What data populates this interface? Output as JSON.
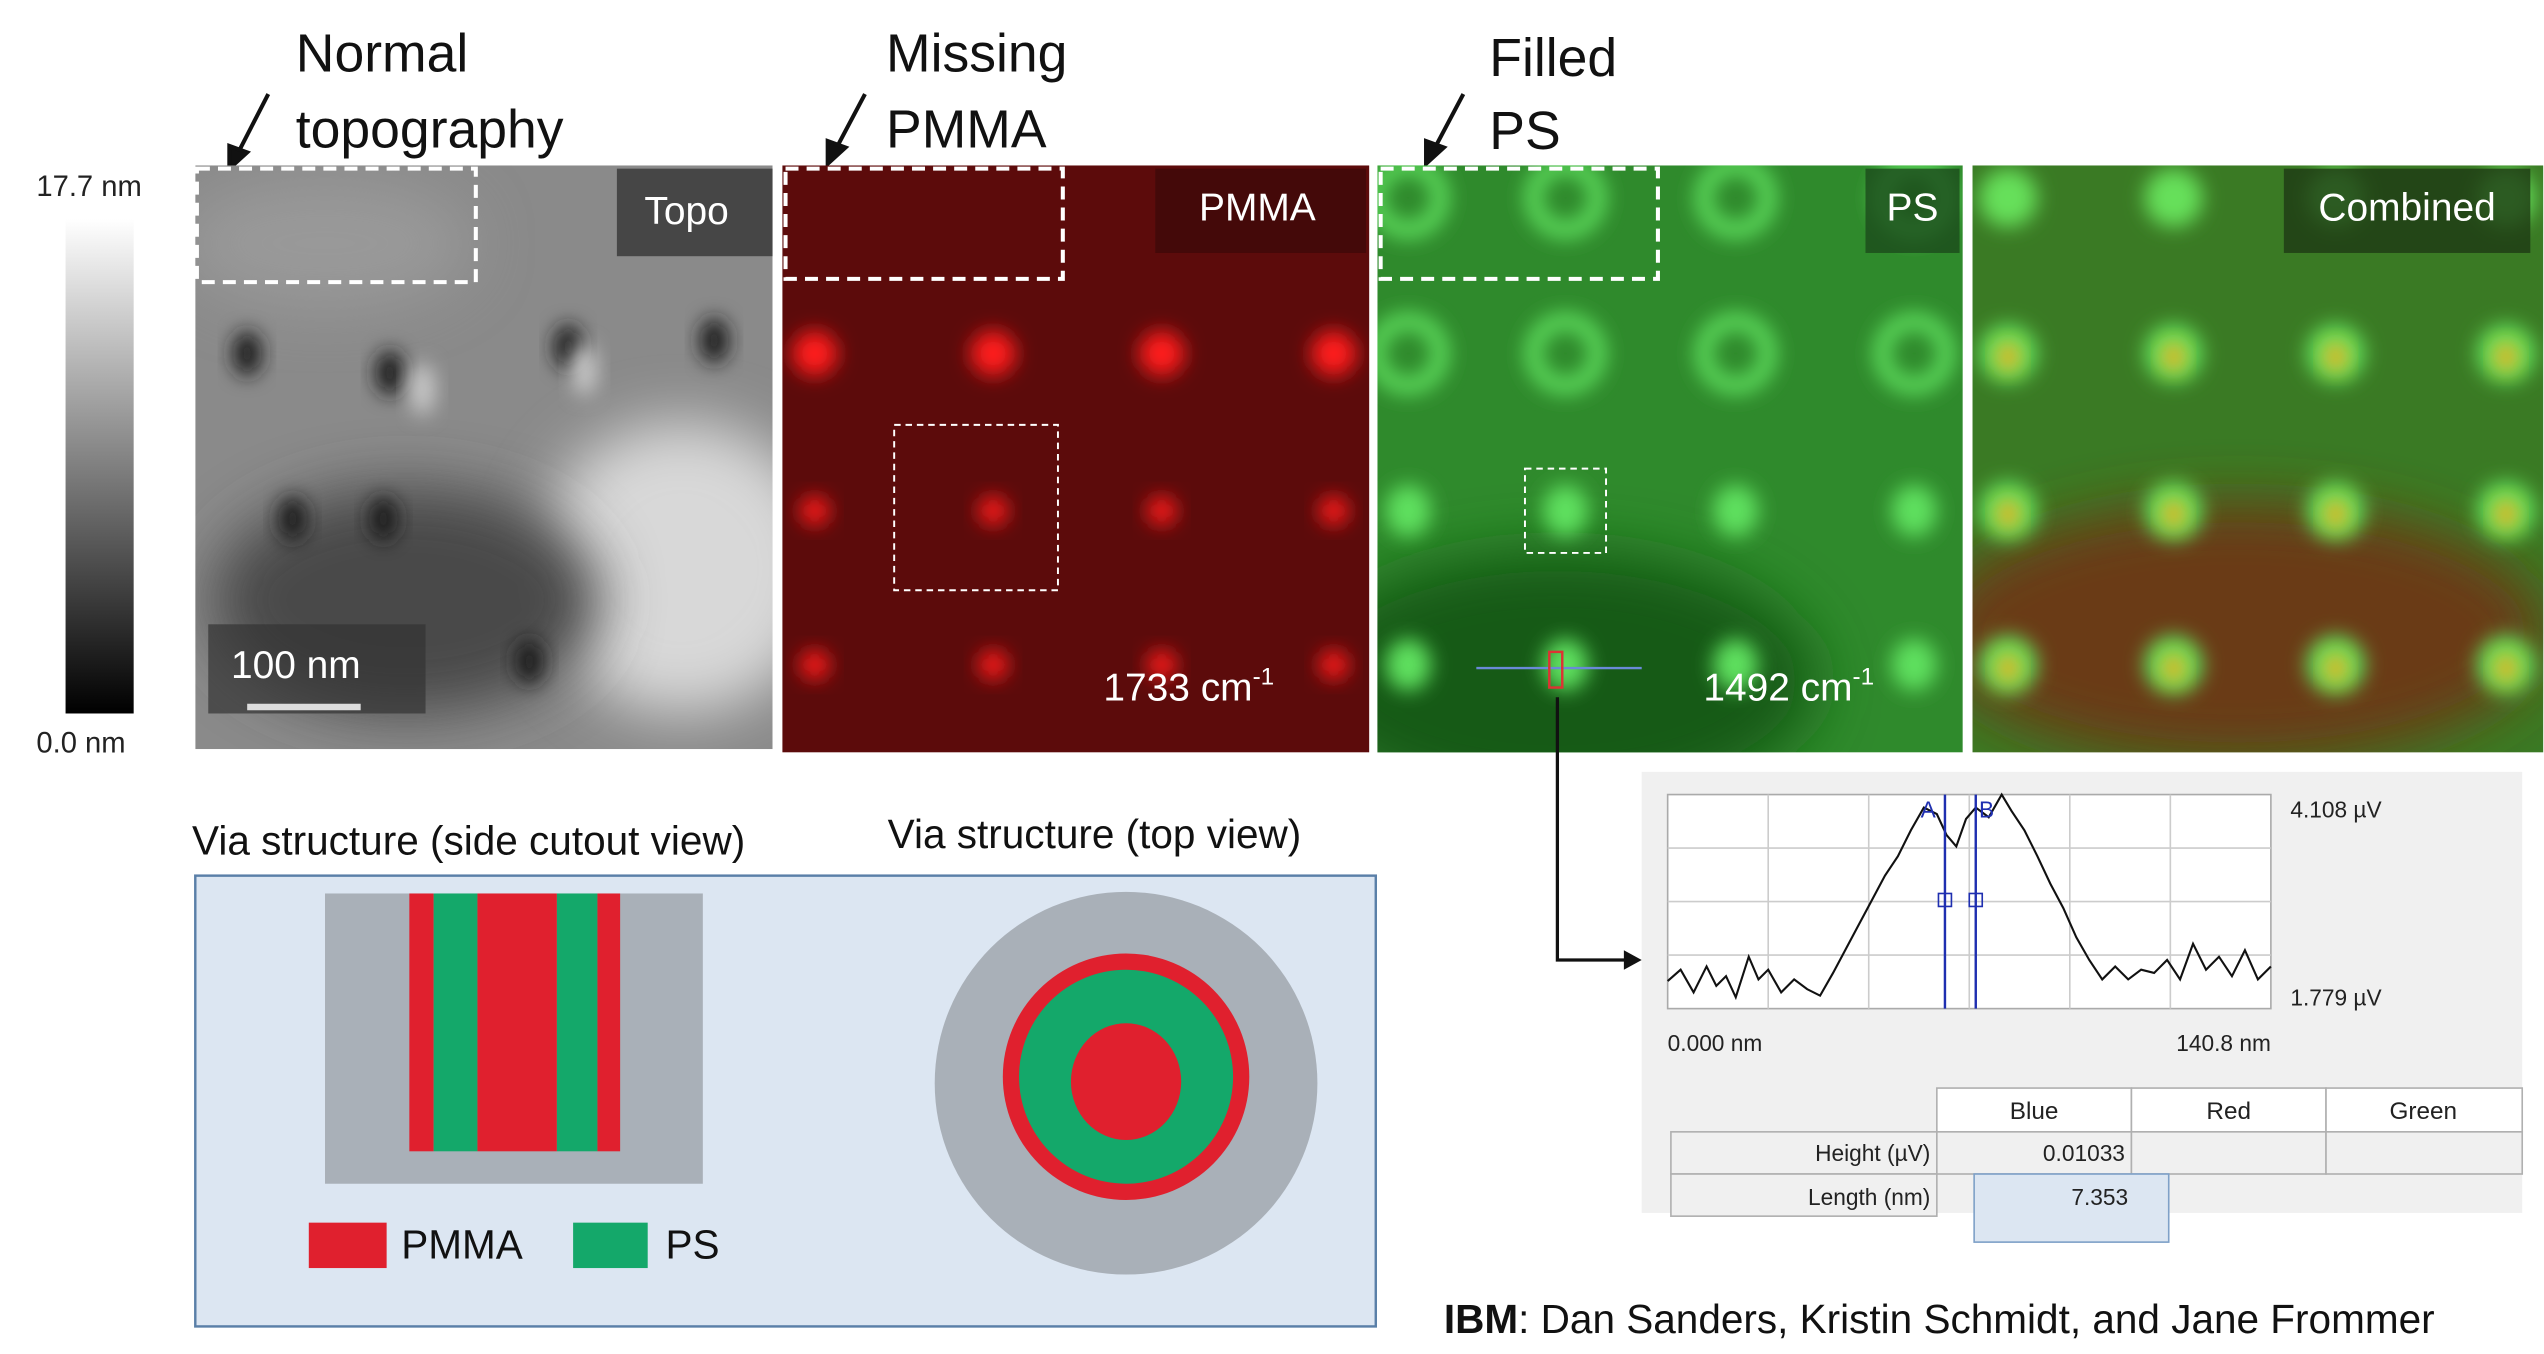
{
  "annotations": {
    "normal": [
      "Normal",
      "topography"
    ],
    "missing": [
      "Missing",
      "PMMA"
    ],
    "filled": [
      "Filled",
      "PS"
    ]
  },
  "colorbar": {
    "max_label": "17.7 nm",
    "min_label": "0.0 nm"
  },
  "panels": [
    {
      "label": "Topo",
      "scale_bar": "100 nm"
    },
    {
      "label": "PMMA",
      "wavenumber": {
        "text": "1733 cm",
        "superscript": "-1"
      }
    },
    {
      "label": "PS",
      "wavenumber": {
        "text": "1492 cm",
        "superscript": "-1"
      }
    },
    {
      "label": "Combined"
    }
  ],
  "diagram": {
    "side_title": "Via structure (side cutout view)",
    "top_title": "Via structure (top view)",
    "legend": [
      "PMMA",
      "PS"
    ]
  },
  "profile": {
    "y_max_label": "4.108 µV",
    "y_min_label": "1.779 µV",
    "x_min_label": "0.000 nm",
    "x_max_label": "140.8 nm",
    "cursors": [
      "A",
      "B"
    ],
    "table": {
      "header": [
        "Blue",
        "Red",
        "Green"
      ],
      "rows": [
        [
          "Height (µV)",
          "0.01033"
        ],
        [
          "Length (nm)",
          "7.353"
        ]
      ]
    }
  },
  "credit": {
    "org": "IBM",
    "names": ": Dan Sanders, Kristin Schmidt, and Jane Frommer"
  }
}
